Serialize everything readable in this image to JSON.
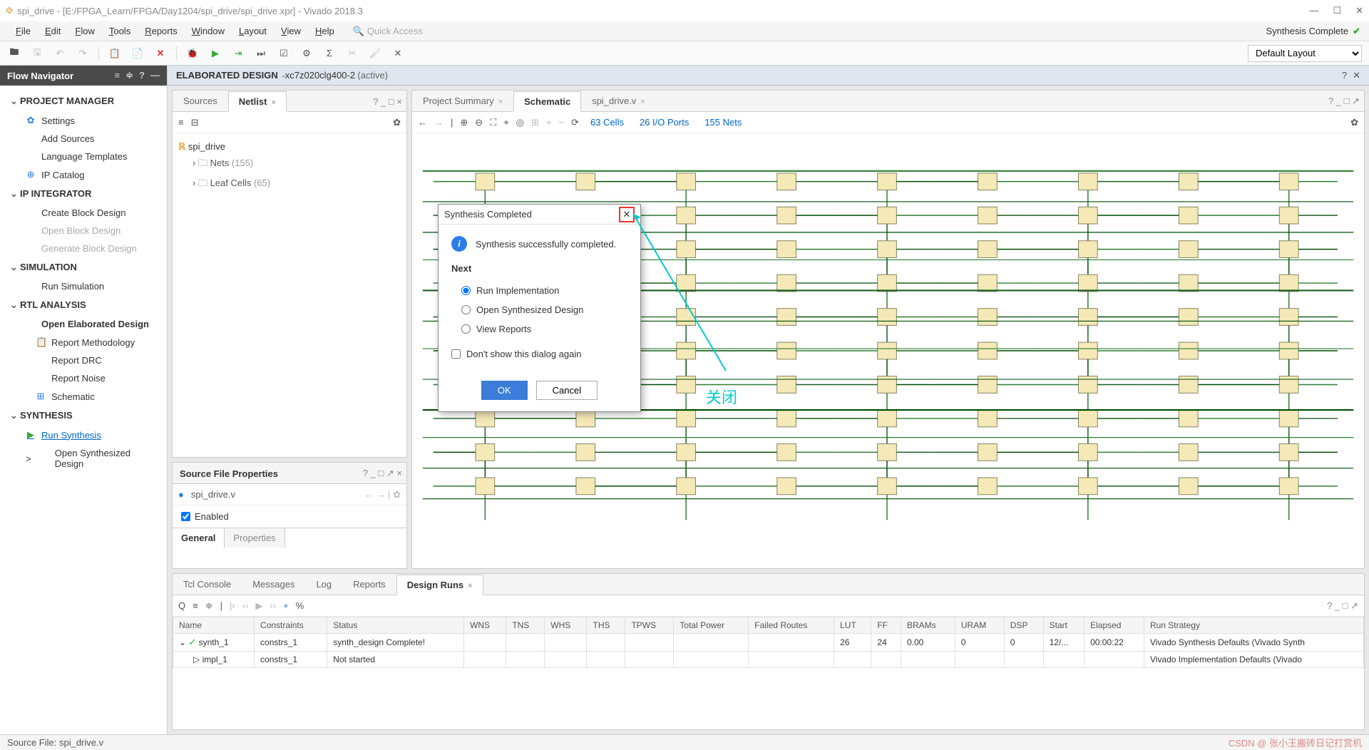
{
  "title": "spi_drive - [E:/FPGA_Learn/FPGA/Day1204/spi_drive/spi_drive.xpr] - Vivado 2018.3",
  "menus": [
    "File",
    "Edit",
    "Flow",
    "Tools",
    "Reports",
    "Window",
    "Layout",
    "View",
    "Help"
  ],
  "quick_access": "Quick Access",
  "synth_status": "Synthesis Complete",
  "layout_sel": "Default Layout",
  "nav": {
    "title": "Flow Navigator",
    "sections": [
      {
        "label": "PROJECT MANAGER",
        "items": [
          {
            "icon": "✿",
            "label": "Settings",
            "cls": ""
          },
          {
            "icon": "",
            "label": "Add Sources",
            "cls": ""
          },
          {
            "icon": "",
            "label": "Language Templates",
            "cls": ""
          },
          {
            "icon": "⊕",
            "label": "IP Catalog",
            "cls": ""
          }
        ]
      },
      {
        "label": "IP INTEGRATOR",
        "items": [
          {
            "icon": "",
            "label": "Create Block Design",
            "cls": ""
          },
          {
            "icon": "",
            "label": "Open Block Design",
            "cls": "disabled"
          },
          {
            "icon": "",
            "label": "Generate Block Design",
            "cls": "disabled"
          }
        ]
      },
      {
        "label": "SIMULATION",
        "items": [
          {
            "icon": "",
            "label": "Run Simulation",
            "cls": ""
          }
        ]
      },
      {
        "label": "RTL ANALYSIS",
        "items": [
          {
            "icon": "",
            "label": "Open Elaborated Design",
            "cls": "",
            "bold": true,
            "subs": [
              {
                "icon": "📋",
                "label": "Report Methodology"
              },
              {
                "icon": "",
                "label": "Report DRC"
              },
              {
                "icon": "",
                "label": "Report Noise"
              },
              {
                "icon": "⊞",
                "label": "Schematic"
              }
            ]
          }
        ]
      },
      {
        "label": "SYNTHESIS",
        "items": [
          {
            "icon": "▶",
            "label": "Run Synthesis",
            "cls": "link"
          },
          {
            "icon": "",
            "label": "Open Synthesized Design",
            "cls": "",
            "pre": ">"
          }
        ]
      }
    ]
  },
  "elab": {
    "title": "ELABORATED DESIGN",
    "part": "xc7z020clg400-2",
    "state": "(active)"
  },
  "sources": {
    "tabs": [
      "Sources",
      "Netlist"
    ],
    "active": 1,
    "root": "spi_drive",
    "children": [
      {
        "label": "Nets",
        "count": "(155)"
      },
      {
        "label": "Leaf Cells",
        "count": "(65)"
      }
    ]
  },
  "props": {
    "title": "Source File Properties",
    "file": "spi_drive.v",
    "enabled": "Enabled",
    "foot": [
      "General",
      "Properties"
    ]
  },
  "schem": {
    "tabs": [
      "Project Summary",
      "Schematic",
      "spi_drive.v"
    ],
    "active": 1,
    "stats": {
      "cells": "63 Cells",
      "ports": "26 I/O Ports",
      "nets": "155 Nets"
    },
    "wire_colors": [
      "#2e7d32",
      "#1b5e20",
      "#004d00"
    ],
    "bg": "#ffffff"
  },
  "bottom": {
    "tabs": [
      "Tcl Console",
      "Messages",
      "Log",
      "Reports",
      "Design Runs"
    ],
    "active": 4,
    "cols": [
      "Name",
      "Constraints",
      "Status",
      "WNS",
      "TNS",
      "WHS",
      "THS",
      "TPWS",
      "Total Power",
      "Failed Routes",
      "LUT",
      "FF",
      "BRAMs",
      "URAM",
      "DSP",
      "Start",
      "Elapsed",
      "Run Strategy"
    ],
    "rows": [
      [
        "✓ synth_1",
        "constrs_1",
        "synth_design Complete!",
        "",
        "",
        "",
        "",
        "",
        "",
        "",
        "26",
        "24",
        "0.00",
        "0",
        "0",
        "12/...",
        "00:00:22",
        "Vivado Synthesis Defaults (Vivado Synth"
      ],
      [
        "▷ impl_1",
        "constrs_1",
        "Not started",
        "",
        "",
        "",
        "",
        "",
        "",
        "",
        "",
        "",
        "",
        "",
        "",
        "",
        "",
        "Vivado Implementation Defaults (Vivado"
      ]
    ]
  },
  "dialog": {
    "title": "Synthesis Completed",
    "msg": "Synthesis successfully completed.",
    "next": "Next",
    "opts": [
      "Run Implementation",
      "Open Synthesized Design",
      "View Reports"
    ],
    "dontshow": "Don't show this dialog again",
    "ok": "OK",
    "cancel": "Cancel"
  },
  "annot": "关闭",
  "status": "Source File: spi_drive.v",
  "csdn": "CSDN @ 张小王搬砖日记打赏机"
}
